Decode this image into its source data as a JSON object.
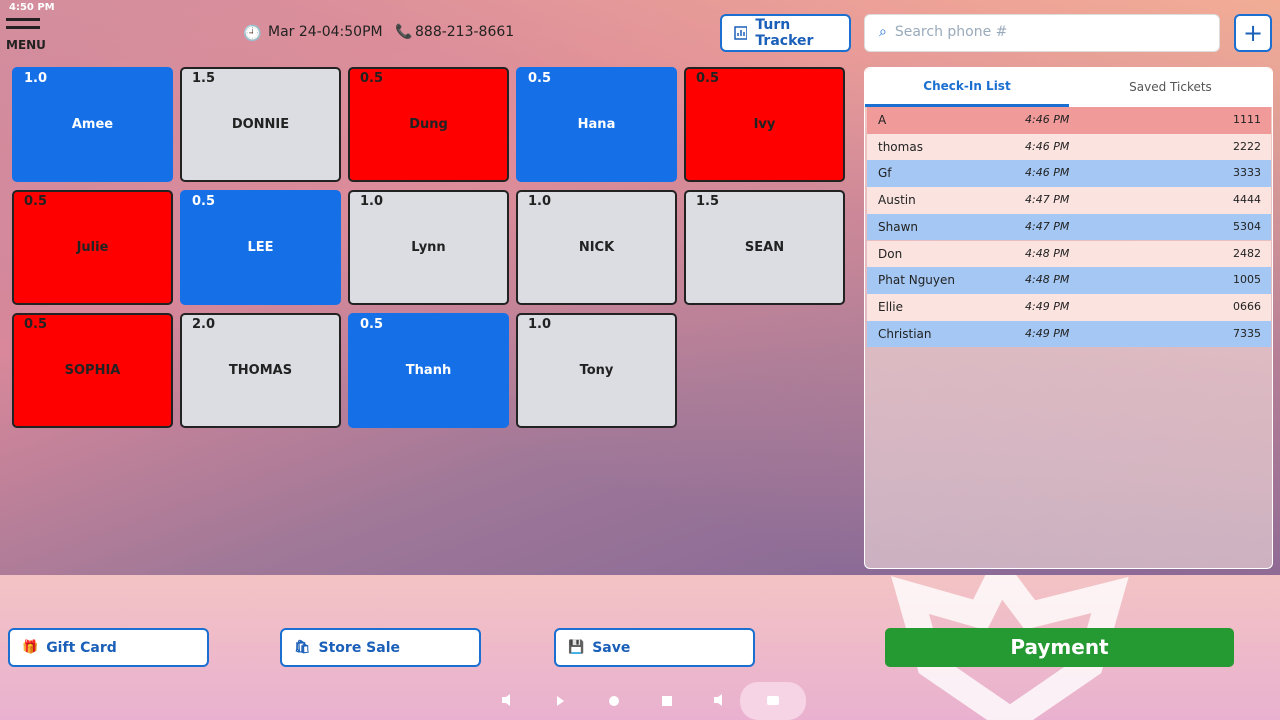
{
  "status_bar": {
    "time": "4:50 PM"
  },
  "header": {
    "menu": "MENU",
    "datetime": "Mar 24-04:50PM",
    "phone": "888-213-8661",
    "turn_tracker": "Turn Tracker",
    "search_placeholder": "Search phone #"
  },
  "staff": [
    {
      "turns": "1.0",
      "name": "Amee",
      "color": "#1570e8"
    },
    {
      "turns": "1.5",
      "name": "DONNIE",
      "color": "#dcdde3"
    },
    {
      "turns": "0.5",
      "name": "Dung",
      "color": "#ff0000"
    },
    {
      "turns": "0.5",
      "name": "Hana",
      "color": "#1570e8"
    },
    {
      "turns": "0.5",
      "name": "Ivy",
      "color": "#ff0000"
    },
    {
      "turns": "0.5",
      "name": "Julie",
      "color": "#ff0000"
    },
    {
      "turns": "0.5",
      "name": "LEE",
      "color": "#1570e8"
    },
    {
      "turns": "1.0",
      "name": "Lynn",
      "color": "#dcdde3"
    },
    {
      "turns": "1.0",
      "name": "NICK",
      "color": "#dcdde3"
    },
    {
      "turns": "1.5",
      "name": "SEAN",
      "color": "#dcdde3"
    },
    {
      "turns": "0.5",
      "name": "SOPHIA",
      "color": "#ff0000"
    },
    {
      "turns": "2.0",
      "name": "THOMAS",
      "color": "#dcdde3"
    },
    {
      "turns": "0.5",
      "name": "Thanh",
      "color": "#1570e8"
    },
    {
      "turns": "1.0",
      "name": "Tony",
      "color": "#dcdde3"
    }
  ],
  "tabs": [
    "Check-In List",
    "Saved Tickets"
  ],
  "checkins": [
    {
      "name": "A",
      "time": "4:46 PM",
      "phone": "1111"
    },
    {
      "name": "thomas",
      "time": "4:46 PM",
      "phone": "2222"
    },
    {
      "name": "Gf",
      "time": "4:46 PM",
      "phone": "3333"
    },
    {
      "name": "Austin",
      "time": "4:47 PM",
      "phone": "4444"
    },
    {
      "name": "Shawn",
      "time": "4:47 PM",
      "phone": "5304"
    },
    {
      "name": "Don",
      "time": "4:48 PM",
      "phone": "2482"
    },
    {
      "name": "Phat Nguyen",
      "time": "4:48 PM",
      "phone": "1005"
    },
    {
      "name": "Ellie",
      "time": "4:49 PM",
      "phone": "0666"
    },
    {
      "name": "Christian",
      "time": "4:49 PM",
      "phone": "7335"
    }
  ],
  "actions": [
    "Gift Card",
    "Store Sale",
    "Save"
  ],
  "payment": "Payment"
}
